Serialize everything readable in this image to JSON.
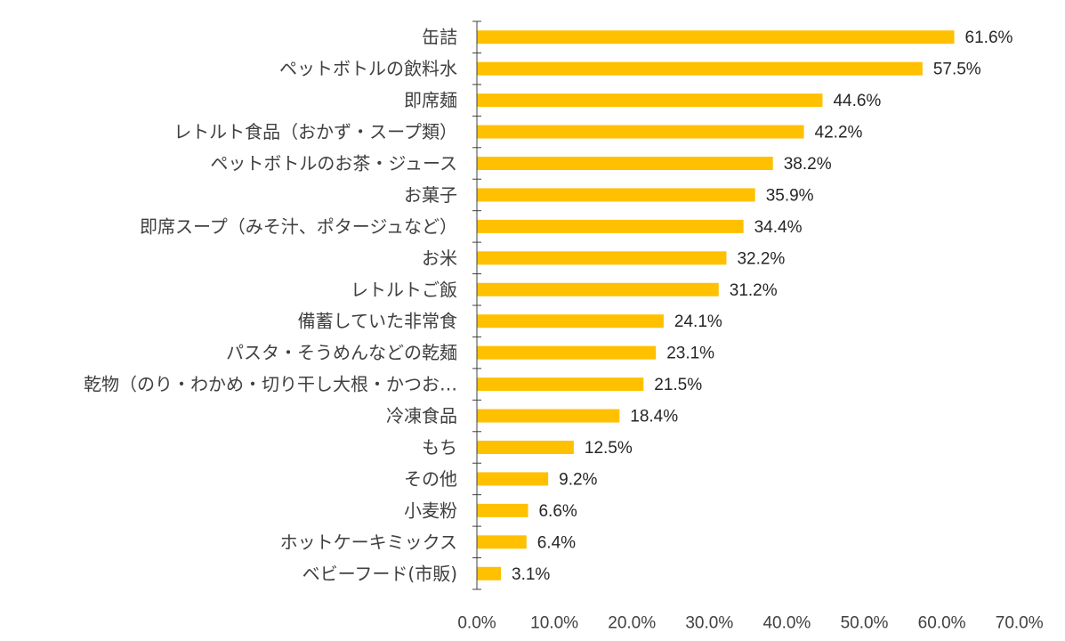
{
  "chart_data": {
    "type": "bar",
    "orientation": "horizontal",
    "categories": [
      "缶詰",
      "ペットボトルの飲料水",
      "即席麺",
      "レトルト食品（おかず・スープ類）",
      "ペットボトルのお茶・ジュース",
      "お菓子",
      "即席スープ（みそ汁、ポタージュなど）",
      "お米",
      "レトルトご飯",
      "備蓄していた非常食",
      "パスタ・そうめんなどの乾麺",
      "乾物（のり・わかめ・切り干し大根・かつお…",
      "冷凍食品",
      "もち",
      "その他",
      "小麦粉",
      "ホットケーキミックス",
      "ベビーフード(市販)"
    ],
    "values": [
      61.6,
      57.5,
      44.6,
      42.2,
      38.2,
      35.9,
      34.4,
      32.2,
      31.2,
      24.1,
      23.1,
      21.5,
      18.4,
      12.5,
      9.2,
      6.6,
      6.4,
      3.1
    ],
    "value_labels": [
      "61.6%",
      "57.5%",
      "44.6%",
      "42.2%",
      "38.2%",
      "35.9%",
      "34.4%",
      "32.2%",
      "31.2%",
      "24.1%",
      "23.1%",
      "21.5%",
      "18.4%",
      "12.5%",
      "9.2%",
      "6.6%",
      "6.4%",
      "3.1%"
    ],
    "xlim": [
      0,
      70
    ],
    "x_ticks": [
      0,
      10,
      20,
      30,
      40,
      50,
      60,
      70
    ],
    "x_tick_labels": [
      "0.0%",
      "10.0%",
      "20.0%",
      "30.0%",
      "40.0%",
      "50.0%",
      "60.0%",
      "70.0%"
    ],
    "title": "",
    "xlabel": "",
    "ylabel": "",
    "grid": false,
    "legend": "none",
    "bar_color": "#FFC000"
  }
}
